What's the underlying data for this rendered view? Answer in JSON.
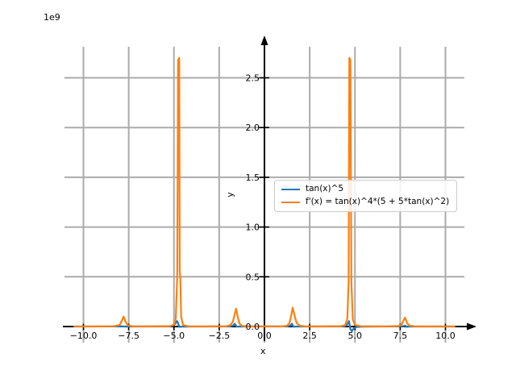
{
  "figure": {
    "offset_label": "1e9",
    "background": "#ffffff"
  },
  "axes": {
    "xlabel": "x",
    "ylabel": "y",
    "axis_color": "#000000",
    "grid_color": "#ababab",
    "x_ticks": {
      "values": [
        -10.0,
        -7.5,
        -5.0,
        -2.5,
        0.0,
        2.5,
        5.0,
        7.5,
        10.0
      ],
      "labels": [
        "−10.0",
        "−7.5",
        "−5.0",
        "−2.5",
        "0.0",
        "2.5",
        "5.0",
        "7.5",
        "10.0"
      ]
    },
    "y_ticks": {
      "values": [
        0.0,
        0.5,
        1.0,
        1.5,
        2.0,
        2.5
      ],
      "labels": [
        "0.0",
        "0.5",
        "1.0",
        "1.5",
        "2.0",
        "2.5"
      ]
    }
  },
  "legend": {
    "entries": [
      {
        "label": "tan(x)^5",
        "color": "#1f77b4"
      },
      {
        "label": "f'(x) = tan(x)^4*(5 + 5*tan(x)^2)",
        "color": "#ff7f0e"
      }
    ]
  },
  "chart_data": {
    "type": "line",
    "title": "",
    "xlabel": "x",
    "ylabel": "y",
    "y_scale": "1e9",
    "xlim": [
      -11.05,
      11.05
    ],
    "ylim": [
      -0.16,
      2.81
    ],
    "grid": true,
    "legend_position": "center right of origin",
    "x_ticks": [
      -10.0,
      -7.5,
      -5.0,
      -2.5,
      0.0,
      2.5,
      5.0,
      7.5,
      10.0
    ],
    "y_ticks": [
      0.0,
      0.5,
      1.0,
      1.5,
      2.0,
      2.5
    ],
    "series": [
      {
        "name": "tan(x)^5",
        "color": "#1f77b4",
        "points": [
          [
            -10.5,
            0
          ],
          [
            -8.0,
            0.001
          ],
          [
            -7.85,
            0.003
          ],
          [
            -7.8,
            0
          ],
          [
            -5.3,
            0.001
          ],
          [
            -5.05,
            0.008
          ],
          [
            -4.92,
            0.03
          ],
          [
            -4.83,
            0.055
          ],
          [
            -4.76,
            0.03
          ],
          [
            -4.72,
            0.003
          ],
          [
            -4.7,
            -0.003
          ],
          [
            -4.6,
            -0.001
          ],
          [
            -4.0,
            0
          ],
          [
            -1.9,
            0.001
          ],
          [
            -1.75,
            0.008
          ],
          [
            -1.64,
            0.028
          ],
          [
            -1.58,
            0.012
          ],
          [
            -1.55,
            -0.002
          ],
          [
            -1.4,
            0
          ],
          [
            1.25,
            0.001
          ],
          [
            1.42,
            0.009
          ],
          [
            1.52,
            0.028
          ],
          [
            1.57,
            0.008
          ],
          [
            1.6,
            -0.002
          ],
          [
            1.8,
            0
          ],
          [
            4.3,
            0.001
          ],
          [
            4.5,
            0.008
          ],
          [
            4.6,
            0.03
          ],
          [
            4.67,
            0.055
          ],
          [
            4.71,
            0.01
          ],
          [
            4.75,
            -0.025
          ],
          [
            4.83,
            -0.048
          ],
          [
            4.93,
            -0.018
          ],
          [
            5.08,
            -0.005
          ],
          [
            5.4,
            -0.001
          ],
          [
            7.6,
            0.002
          ],
          [
            7.78,
            0.008
          ],
          [
            7.86,
            -0.003
          ],
          [
            8.0,
            0
          ],
          [
            10.5,
            0
          ]
        ]
      },
      {
        "name": "f'(x) = tan(x)^4*(5 + 5*tan(x)^2)",
        "color": "#ff7f0e",
        "points": [
          [
            -10.5,
            0.002
          ],
          [
            -9.5,
            0.001
          ],
          [
            -8.3,
            0.003
          ],
          [
            -8.0,
            0.015
          ],
          [
            -7.9,
            0.05
          ],
          [
            -7.78,
            0.1
          ],
          [
            -7.68,
            0.05
          ],
          [
            -7.55,
            0.012
          ],
          [
            -7.3,
            0.002
          ],
          [
            -6.5,
            0.001
          ],
          [
            -5.2,
            0.004
          ],
          [
            -5.0,
            0.02
          ],
          [
            -4.9,
            0.08
          ],
          [
            -4.82,
            0.5
          ],
          [
            -4.77,
            2.68
          ],
          [
            -4.71,
            2.7
          ],
          [
            -4.68,
            0.55
          ],
          [
            -4.65,
            0.5
          ],
          [
            -4.6,
            0.1
          ],
          [
            -4.5,
            0.015
          ],
          [
            -4.2,
            0.002
          ],
          [
            -3.0,
            0.001
          ],
          [
            -2.1,
            0.003
          ],
          [
            -1.9,
            0.012
          ],
          [
            -1.75,
            0.045
          ],
          [
            -1.65,
            0.12
          ],
          [
            -1.57,
            0.18
          ],
          [
            -1.48,
            0.1
          ],
          [
            -1.38,
            0.03
          ],
          [
            -1.25,
            0.007
          ],
          [
            -1.0,
            0.001
          ],
          [
            0.0,
            0.0005
          ],
          [
            1.0,
            0.001
          ],
          [
            1.25,
            0.008
          ],
          [
            1.38,
            0.035
          ],
          [
            1.48,
            0.11
          ],
          [
            1.56,
            0.19
          ],
          [
            1.66,
            0.11
          ],
          [
            1.78,
            0.035
          ],
          [
            1.95,
            0.008
          ],
          [
            2.2,
            0.002
          ],
          [
            3.0,
            0.001
          ],
          [
            4.2,
            0.003
          ],
          [
            4.45,
            0.012
          ],
          [
            4.58,
            0.08
          ],
          [
            4.65,
            0.45
          ],
          [
            4.69,
            2.7
          ],
          [
            4.75,
            2.68
          ],
          [
            4.8,
            0.45
          ],
          [
            4.88,
            0.07
          ],
          [
            5.0,
            0.015
          ],
          [
            5.3,
            0.003
          ],
          [
            6.5,
            0.001
          ],
          [
            7.4,
            0.004
          ],
          [
            7.58,
            0.02
          ],
          [
            7.68,
            0.06
          ],
          [
            7.77,
            0.09
          ],
          [
            7.88,
            0.035
          ],
          [
            8.0,
            0.01
          ],
          [
            8.3,
            0.002
          ],
          [
            9.5,
            0.001
          ],
          [
            10.5,
            0.002
          ]
        ]
      }
    ]
  }
}
